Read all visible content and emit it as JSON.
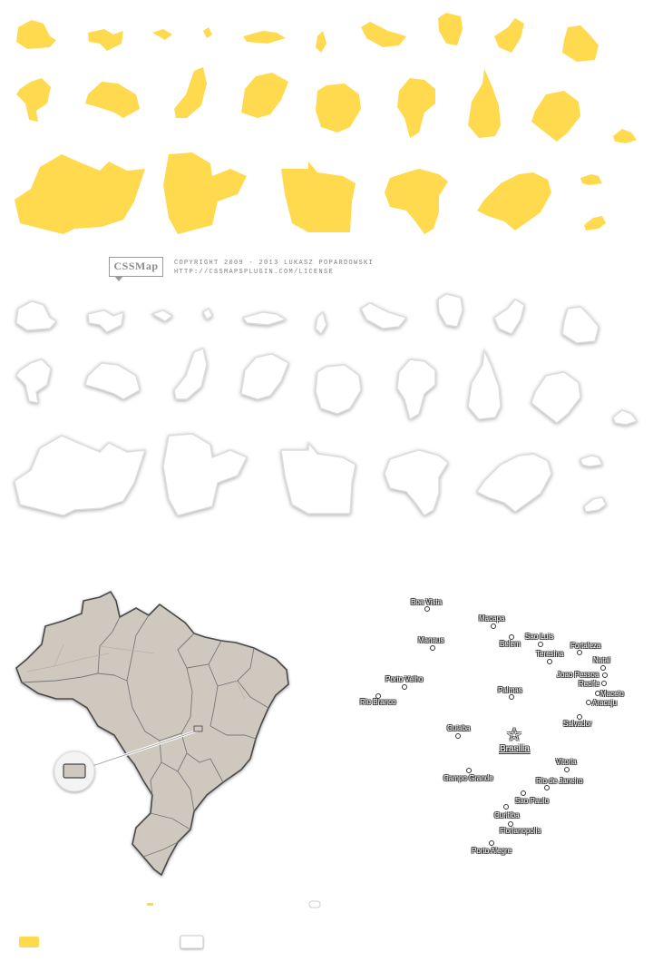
{
  "logo": {
    "text": "CSSMap"
  },
  "copyright": {
    "line1": "COPYRIGHT 2009 - 2013 LUKASZ POPARDOWSKI",
    "line2": "HTTP://CSSMAPSPLUGIN.COM/LICENSE"
  },
  "colors": {
    "state_fill": "#ffda4f",
    "map_fill": "#cfc8bf",
    "map_border": "#4a4a4a"
  },
  "map": {
    "capital": "Brasilia",
    "cities": [
      "Boa Vista",
      "Macapa",
      "Manaus",
      "Belem",
      "Sao Luis",
      "Fortaleza",
      "Teresina",
      "Natal",
      "Joao Pessoa",
      "Recife",
      "Maceio",
      "Aracaju",
      "Porto Velho",
      "Rio Branco",
      "Palmas",
      "Salvador",
      "Cuiaba",
      "Vitoria",
      "Campo Grande",
      "Rio de Janeiro",
      "Sao Paulo",
      "Curitiba",
      "Florianopolis",
      "Porto Alegre"
    ]
  }
}
